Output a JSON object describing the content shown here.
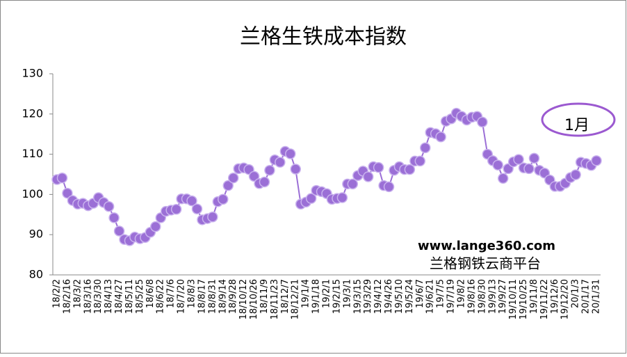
{
  "chart_data": {
    "type": "line",
    "title": "兰格生铁成本指数",
    "categories": [
      "18/2/2",
      null,
      "18/2/16",
      null,
      "18/3/2",
      null,
      "18/3/16",
      null,
      "18/3/30",
      null,
      "18/4/13",
      null,
      "18/4/27",
      null,
      "18/5/11",
      null,
      "18/5/25",
      null,
      "18/6/8",
      null,
      "18/6/22",
      null,
      "18/7/6",
      null,
      "18/7/20",
      null,
      "18/8/3",
      null,
      "18/8/17",
      null,
      "18/8/31",
      null,
      "18/9/14",
      null,
      "18/9/28",
      null,
      "18/10/12",
      null,
      "18/10/26",
      null,
      "18/11/9",
      null,
      "18/11/23",
      null,
      "18/12/7",
      null,
      "18/12/21",
      null,
      "19/1/4",
      null,
      "19/1/18",
      null,
      "19/2/1",
      null,
      "19/2/15",
      null,
      "19/3/1",
      null,
      "19/3/15",
      null,
      "19/3/29",
      null,
      "19/4/12",
      null,
      "19/4/26",
      null,
      "19/5/10",
      null,
      "19/5/24",
      null,
      "19/6/7",
      null,
      "19/6/21",
      null,
      "19/7/5",
      null,
      "19/7/19",
      null,
      "19/8/2",
      null,
      "19/8/16",
      null,
      "19/8/30",
      null,
      "19/9/13",
      null,
      "19/9/27",
      null,
      "19/10/11",
      null,
      "19/10/25",
      null,
      "19/11/8",
      null,
      "19/11/22",
      null,
      "19/12/6",
      null,
      "19/12/20",
      null,
      "20/1/3",
      null,
      "20/1/17",
      null,
      "20/1/31"
    ],
    "series": [
      {
        "color": "#9b6fd6",
        "values": [
          103.7,
          104.1,
          100.3,
          98.5,
          97.6,
          97.8,
          97.2,
          97.8,
          99.2,
          98,
          97,
          94.2,
          90.9,
          88.8,
          88.5,
          89.4,
          89,
          89.3,
          90.6,
          92,
          94.2,
          95.8,
          96.1,
          96.3,
          98.9,
          98.9,
          98.4,
          96.4,
          93.7,
          94,
          94.4,
          98.2,
          98.8,
          102.2,
          104.1,
          106.4,
          106.6,
          106.2,
          104.5,
          102.7,
          103.1,
          106,
          108.6,
          108,
          110.7,
          110.1,
          106.3,
          97.6,
          98.1,
          99,
          101,
          100.7,
          100.2,
          98.8,
          99,
          99.2,
          102.6,
          102.6,
          104.7,
          105.8,
          104.4,
          106.9,
          106.7,
          102.2,
          101.9,
          106,
          106.9,
          106.2,
          106.2,
          108.3,
          108.3,
          111.6,
          115.4,
          115.1,
          114.3,
          118.2,
          118.8,
          120.2,
          119.4,
          118.5,
          119.2,
          119.4,
          118,
          110,
          108.4,
          107.3,
          104,
          106.4,
          108.1,
          108.7,
          106.6,
          106.4,
          109,
          106,
          105.3,
          103.6,
          102,
          102,
          102.8,
          104.2,
          104.9,
          108,
          107.7,
          107.2,
          108.4
        ]
      }
    ],
    "ylim": [
      80,
      130
    ],
    "yticks": [
      80,
      90,
      100,
      110,
      120,
      130
    ],
    "annotations": [
      "1月",
      "www.lange360.com",
      "兰格钢铁云商平台"
    ]
  }
}
